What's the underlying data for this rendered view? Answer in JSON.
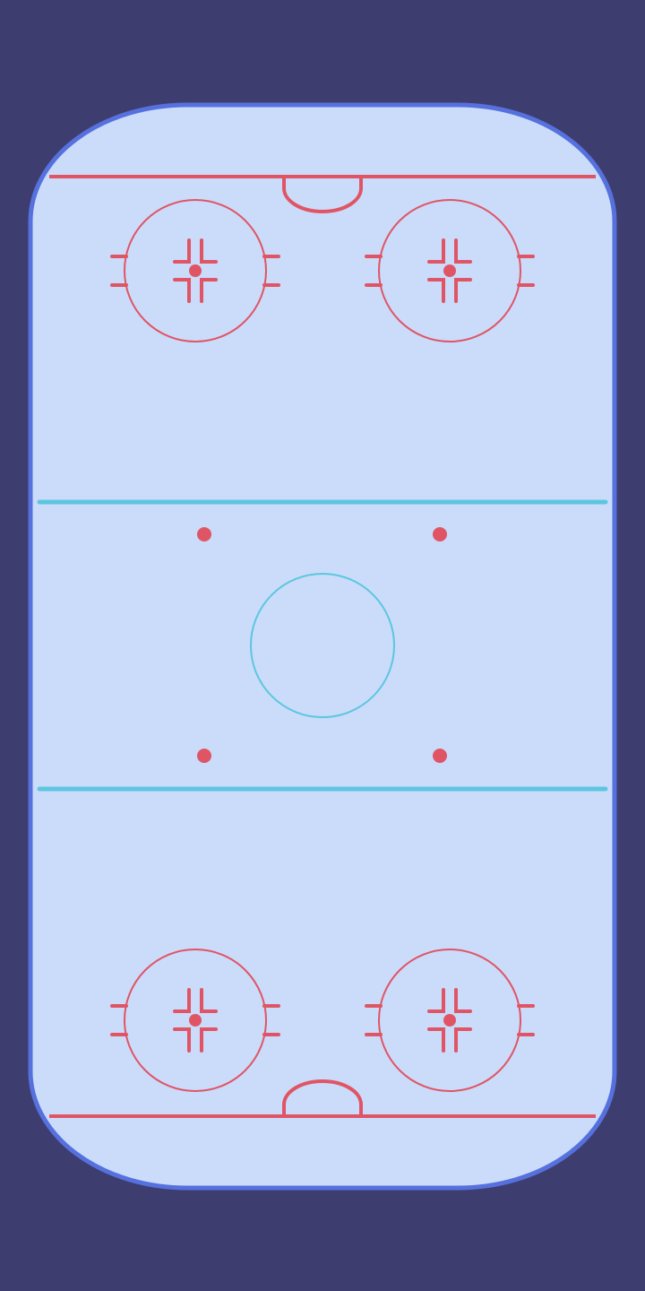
{
  "colors": {
    "background": "#3e3d6f",
    "ice": "#cadcfa",
    "boards": "#5670de",
    "red_line": "#e05565",
    "blue_line": "#5cc6e0",
    "center_circle": "#5cc6e0"
  },
  "rink": {
    "orientation": "vertical",
    "faceoff_circles": 4,
    "neutral_zone_dots": 4,
    "goal_creases": 2
  }
}
